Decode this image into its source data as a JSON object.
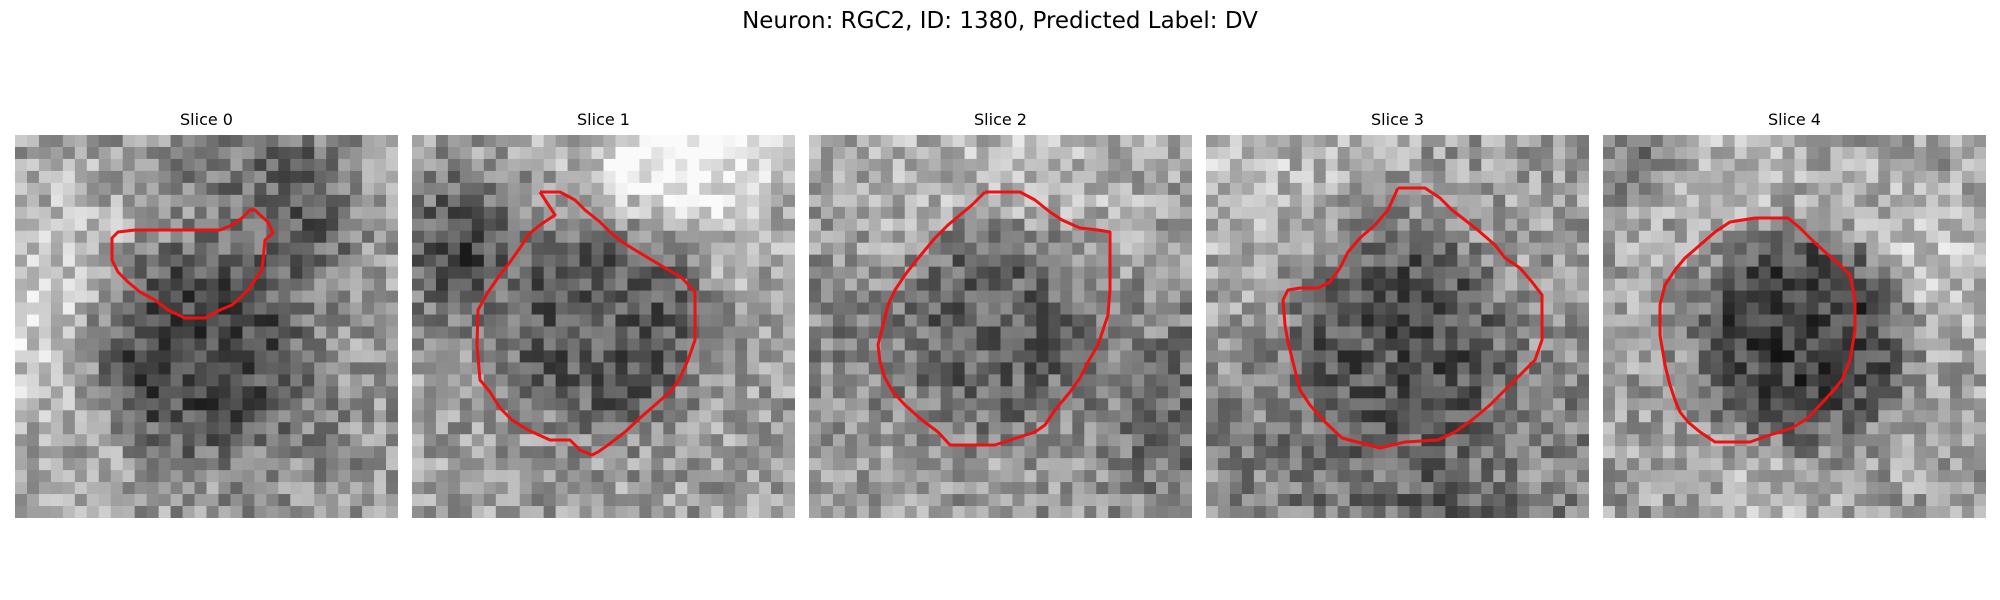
{
  "figure": {
    "title": "Neuron: RGC2, ID: 1380, Predicted Label: DV"
  },
  "outline_color": "#ee1111",
  "panels": [
    {
      "label": "Slice 0",
      "icon": "grayscale-microscopy-image",
      "seed": 11,
      "cell_center": [
        0.48,
        0.56
      ],
      "cell_darkness": 0.18,
      "outline": [
        [
          260,
          215
        ],
        [
          268,
          222
        ],
        [
          273,
          233
        ],
        [
          265,
          240
        ],
        [
          262,
          270
        ],
        [
          255,
          280
        ],
        [
          248,
          290
        ],
        [
          240,
          298
        ],
        [
          232,
          305
        ],
        [
          220,
          310
        ],
        [
          205,
          318
        ],
        [
          185,
          318
        ],
        [
          168,
          310
        ],
        [
          155,
          300
        ],
        [
          140,
          292
        ],
        [
          128,
          282
        ],
        [
          118,
          272
        ],
        [
          112,
          260
        ],
        [
          112,
          238
        ],
        [
          118,
          232
        ],
        [
          135,
          230
        ],
        [
          155,
          230
        ],
        [
          172,
          230
        ],
        [
          195,
          230
        ],
        [
          220,
          230
        ],
        [
          232,
          225
        ],
        [
          242,
          218
        ],
        [
          250,
          210
        ],
        [
          255,
          210
        ]
      ]
    },
    {
      "label": "Slice 1",
      "icon": "grayscale-microscopy-image",
      "seed": 23,
      "cell_center": [
        0.5,
        0.5
      ],
      "cell_darkness": 0.22,
      "outline": [
        [
          540,
          192
        ],
        [
          560,
          192
        ],
        [
          575,
          200
        ],
        [
          585,
          210
        ],
        [
          600,
          222
        ],
        [
          610,
          232
        ],
        [
          622,
          242
        ],
        [
          635,
          250
        ],
        [
          682,
          278
        ],
        [
          695,
          292
        ],
        [
          695,
          340
        ],
        [
          688,
          360
        ],
        [
          680,
          378
        ],
        [
          672,
          390
        ],
        [
          655,
          405
        ],
        [
          640,
          418
        ],
        [
          625,
          432
        ],
        [
          608,
          445
        ],
        [
          598,
          452
        ],
        [
          592,
          455
        ],
        [
          580,
          450
        ],
        [
          570,
          440
        ],
        [
          550,
          440
        ],
        [
          528,
          430
        ],
        [
          512,
          420
        ],
        [
          500,
          408
        ],
        [
          490,
          392
        ],
        [
          480,
          380
        ],
        [
          477,
          345
        ],
        [
          478,
          310
        ],
        [
          488,
          292
        ],
        [
          500,
          275
        ],
        [
          510,
          262
        ],
        [
          522,
          245
        ],
        [
          528,
          235
        ],
        [
          540,
          225
        ],
        [
          555,
          215
        ]
      ]
    },
    {
      "label": "Slice 2",
      "icon": "grayscale-microscopy-image",
      "seed": 37,
      "cell_center": [
        0.48,
        0.5
      ],
      "cell_darkness": 0.24,
      "outline": [
        [
          985,
          192
        ],
        [
          1020,
          192
        ],
        [
          1035,
          200
        ],
        [
          1050,
          212
        ],
        [
          1062,
          220
        ],
        [
          1080,
          228
        ],
        [
          1098,
          230
        ],
        [
          1110,
          232
        ],
        [
          1110,
          252
        ],
        [
          1110,
          290
        ],
        [
          1108,
          315
        ],
        [
          1098,
          345
        ],
        [
          1088,
          362
        ],
        [
          1080,
          378
        ],
        [
          1070,
          392
        ],
        [
          1055,
          410
        ],
        [
          1045,
          425
        ],
        [
          1035,
          432
        ],
        [
          995,
          445
        ],
        [
          950,
          445
        ],
        [
          938,
          432
        ],
        [
          922,
          420
        ],
        [
          905,
          405
        ],
        [
          893,
          392
        ],
        [
          885,
          378
        ],
        [
          880,
          362
        ],
        [
          878,
          345
        ],
        [
          883,
          325
        ],
        [
          888,
          305
        ],
        [
          895,
          290
        ],
        [
          905,
          275
        ],
        [
          915,
          262
        ],
        [
          925,
          250
        ],
        [
          935,
          238
        ],
        [
          948,
          225
        ],
        [
          960,
          215
        ],
        [
          972,
          205
        ]
      ]
    },
    {
      "label": "Slice 3",
      "icon": "grayscale-microscopy-image",
      "seed": 41,
      "cell_center": [
        0.5,
        0.52
      ],
      "cell_darkness": 0.2,
      "outline": [
        [
          1398,
          188
        ],
        [
          1425,
          188
        ],
        [
          1440,
          198
        ],
        [
          1452,
          210
        ],
        [
          1465,
          220
        ],
        [
          1480,
          232
        ],
        [
          1495,
          245
        ],
        [
          1505,
          258
        ],
        [
          1520,
          268
        ],
        [
          1532,
          282
        ],
        [
          1542,
          295
        ],
        [
          1542,
          340
        ],
        [
          1535,
          360
        ],
        [
          1520,
          375
        ],
        [
          1505,
          390
        ],
        [
          1490,
          405
        ],
        [
          1472,
          420
        ],
        [
          1455,
          432
        ],
        [
          1438,
          440
        ],
        [
          1405,
          442
        ],
        [
          1380,
          448
        ],
        [
          1342,
          438
        ],
        [
          1325,
          422
        ],
        [
          1310,
          405
        ],
        [
          1300,
          390
        ],
        [
          1295,
          370
        ],
        [
          1288,
          342
        ],
        [
          1285,
          325
        ],
        [
          1283,
          300
        ],
        [
          1288,
          290
        ],
        [
          1300,
          288
        ],
        [
          1318,
          288
        ],
        [
          1330,
          282
        ],
        [
          1340,
          268
        ],
        [
          1348,
          252
        ],
        [
          1360,
          238
        ],
        [
          1375,
          225
        ],
        [
          1388,
          210
        ]
      ]
    },
    {
      "label": "Slice 4",
      "icon": "grayscale-microscopy-image",
      "seed": 53,
      "cell_center": [
        0.52,
        0.52
      ],
      "cell_darkness": 0.16,
      "outline": [
        [
          1755,
          218
        ],
        [
          1788,
          218
        ],
        [
          1800,
          228
        ],
        [
          1812,
          240
        ],
        [
          1825,
          252
        ],
        [
          1840,
          265
        ],
        [
          1850,
          275
        ],
        [
          1855,
          300
        ],
        [
          1855,
          330
        ],
        [
          1850,
          360
        ],
        [
          1842,
          380
        ],
        [
          1832,
          392
        ],
        [
          1820,
          405
        ],
        [
          1808,
          418
        ],
        [
          1792,
          428
        ],
        [
          1770,
          435
        ],
        [
          1750,
          442
        ],
        [
          1715,
          442
        ],
        [
          1700,
          432
        ],
        [
          1688,
          422
        ],
        [
          1680,
          412
        ],
        [
          1675,
          400
        ],
        [
          1670,
          385
        ],
        [
          1665,
          365
        ],
        [
          1660,
          335
        ],
        [
          1660,
          305
        ],
        [
          1665,
          285
        ],
        [
          1675,
          270
        ],
        [
          1685,
          258
        ],
        [
          1700,
          245
        ],
        [
          1715,
          232
        ],
        [
          1730,
          222
        ]
      ]
    }
  ]
}
